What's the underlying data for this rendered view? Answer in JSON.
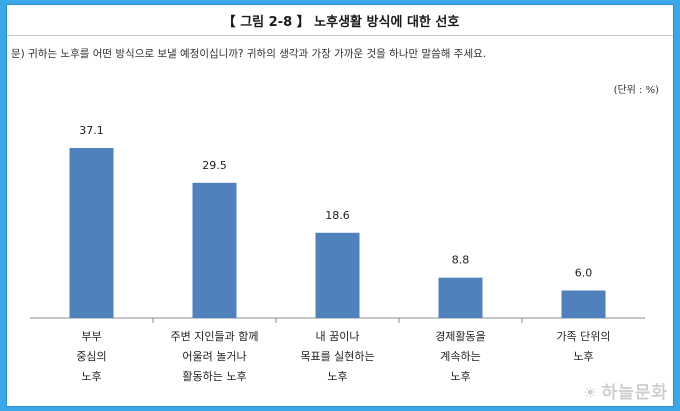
{
  "header": {
    "title": "【 그림 2-8 】 노후생활 방식에 대한 선호",
    "question": "문) 귀하는 노후를 어떤 방식으로 보낼 예정이십니까? 귀하의 생각과 가장 가까운 것을 하나만 말씀해 주세요.",
    "unit": "(단위 : %)"
  },
  "colors": {
    "bar": "#4f81bd",
    "frame": "#3aa7e8"
  },
  "chart_data": {
    "type": "bar",
    "title": "노후생활 방식에 대한 선호",
    "categories": [
      "부부\n중심의\n노후",
      "주변 지인들과 함께\n어울려 놀거나\n활동하는 노후",
      "내 꿈이나\n목표를 실현하는\n노후",
      "경제활동을\n계속하는\n노후",
      "가족 단위의\n노후"
    ],
    "values": [
      37.1,
      29.5,
      18.6,
      8.8,
      6.0
    ],
    "value_labels": [
      "37.1",
      "29.5",
      "18.6",
      "8.8",
      "6.0"
    ],
    "ylim": [
      0,
      40
    ],
    "grid": false,
    "legend": "none"
  },
  "watermark": {
    "icon": "sun-icon",
    "text": "하늘문화"
  }
}
